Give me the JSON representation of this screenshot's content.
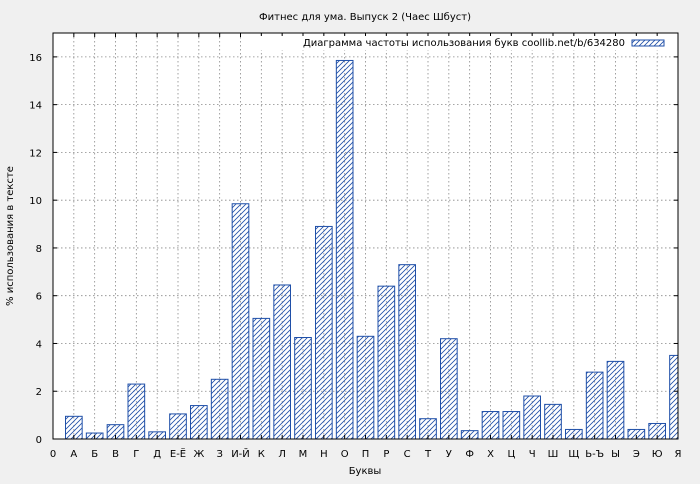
{
  "chart_data": {
    "type": "bar",
    "title": "Фитнес для ума. Выпуск 2 (Чаес Шбуст)",
    "xlabel": "Буквы",
    "ylabel": "% использования в тексте",
    "ylim": [
      0,
      17
    ],
    "yticks": [
      0,
      2,
      4,
      6,
      8,
      10,
      12,
      14,
      16
    ],
    "grid": true,
    "legend_position": "top-right",
    "x_tick_labels": [
      "0",
      "А",
      "Б",
      "В",
      "Г",
      "Д",
      "Е-Ё",
      "Ж",
      "З",
      "И-Й",
      "К",
      "Л",
      "М",
      "Н",
      "О",
      "П",
      "Р",
      "С",
      "Т",
      "У",
      "Ф",
      "Х",
      "Ц",
      "Ч",
      "Ш",
      "Щ",
      "Ь-Ъ",
      "Ы",
      "Э",
      "Ю",
      "Я"
    ],
    "categories": [
      "А",
      "Б",
      "В",
      "Г",
      "Д",
      "Е-Ё",
      "Ж",
      "З",
      "И-Й",
      "К",
      "Л",
      "М",
      "Н",
      "О",
      "П",
      "Р",
      "С",
      "Т",
      "У",
      "Ф",
      "Х",
      "Ц",
      "Ч",
      "Ш",
      "Щ",
      "Ь-Ъ",
      "Ы",
      "Э",
      "Ю",
      "Я"
    ],
    "series": [
      {
        "name": "Диаграмма частоты использования букв coollib.net/b/634280",
        "values": [
          0.95,
          0.25,
          0.6,
          2.3,
          0.3,
          1.05,
          1.4,
          2.5,
          9.85,
          5.05,
          6.45,
          4.25,
          8.9,
          15.85,
          4.3,
          6.4,
          7.3,
          0.85,
          4.2,
          0.35,
          1.15,
          1.15,
          1.8,
          1.45,
          0.4,
          2.8,
          3.25,
          0.4,
          0.65,
          3.5
        ],
        "color": "#1f4fa8"
      }
    ]
  }
}
